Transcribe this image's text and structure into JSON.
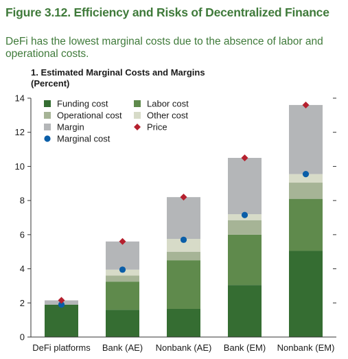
{
  "figure": {
    "title": "Figure 3.12. Efficiency and Risks of Decentralized Finance",
    "subtitle": "DeFi has the lowest marginal costs due to the absence of labor and operational costs."
  },
  "panel": {
    "title": "1. Estimated Marginal Costs and Margins",
    "unit": "(Percent)"
  },
  "colors": {
    "funding": "#356d32",
    "labor": "#5f8a4c",
    "operational": "#a6b496",
    "other": "#d7dbc8",
    "margin": "#b4b6b8",
    "marginal_cost": "#0b5ea8",
    "price": "#b5202e"
  },
  "chart_data": {
    "type": "bar",
    "stacked": true,
    "categories": [
      "DeFi platforms",
      "Bank (AE)",
      "Nonbank (AE)",
      "Bank (EM)",
      "Nonbank (EM)"
    ],
    "series": [
      {
        "name": "Funding cost",
        "key": "funding",
        "values": [
          1.9,
          1.6,
          1.65,
          3.05,
          5.05
        ]
      },
      {
        "name": "Labor cost",
        "key": "labor",
        "values": [
          0,
          1.65,
          2.85,
          2.95,
          3.05
        ]
      },
      {
        "name": "Operational cost",
        "key": "operational",
        "values": [
          0,
          0.35,
          0.5,
          0.85,
          0.95
        ]
      },
      {
        "name": "Other cost",
        "key": "other",
        "values": [
          0,
          0.35,
          0.75,
          0.35,
          0.5
        ]
      },
      {
        "name": "Margin",
        "key": "margin",
        "values": [
          0.25,
          1.65,
          2.45,
          3.3,
          4.05
        ]
      }
    ],
    "markers": [
      {
        "name": "Marginal cost",
        "key": "marginal_cost",
        "shape": "circle",
        "values": [
          1.9,
          3.95,
          5.7,
          7.15,
          9.55
        ]
      },
      {
        "name": "Price",
        "key": "price",
        "shape": "diamond",
        "values": [
          2.15,
          5.6,
          8.2,
          10.5,
          13.6
        ]
      }
    ],
    "ylim": [
      0,
      14
    ],
    "yticks": [
      0,
      2,
      4,
      6,
      8,
      10,
      12,
      14
    ],
    "legend": [
      {
        "label": "Funding cost",
        "key": "funding",
        "shape": "square"
      },
      {
        "label": "Labor cost",
        "key": "labor",
        "shape": "square"
      },
      {
        "label": "Operational cost",
        "key": "operational",
        "shape": "square"
      },
      {
        "label": "Other cost",
        "key": "other",
        "shape": "square"
      },
      {
        "label": "Margin",
        "key": "margin",
        "shape": "square"
      },
      {
        "label": "Price",
        "key": "price",
        "shape": "diamond"
      },
      {
        "label": "Marginal cost",
        "key": "marginal_cost",
        "shape": "circle"
      }
    ],
    "legend_position": "top-left"
  }
}
